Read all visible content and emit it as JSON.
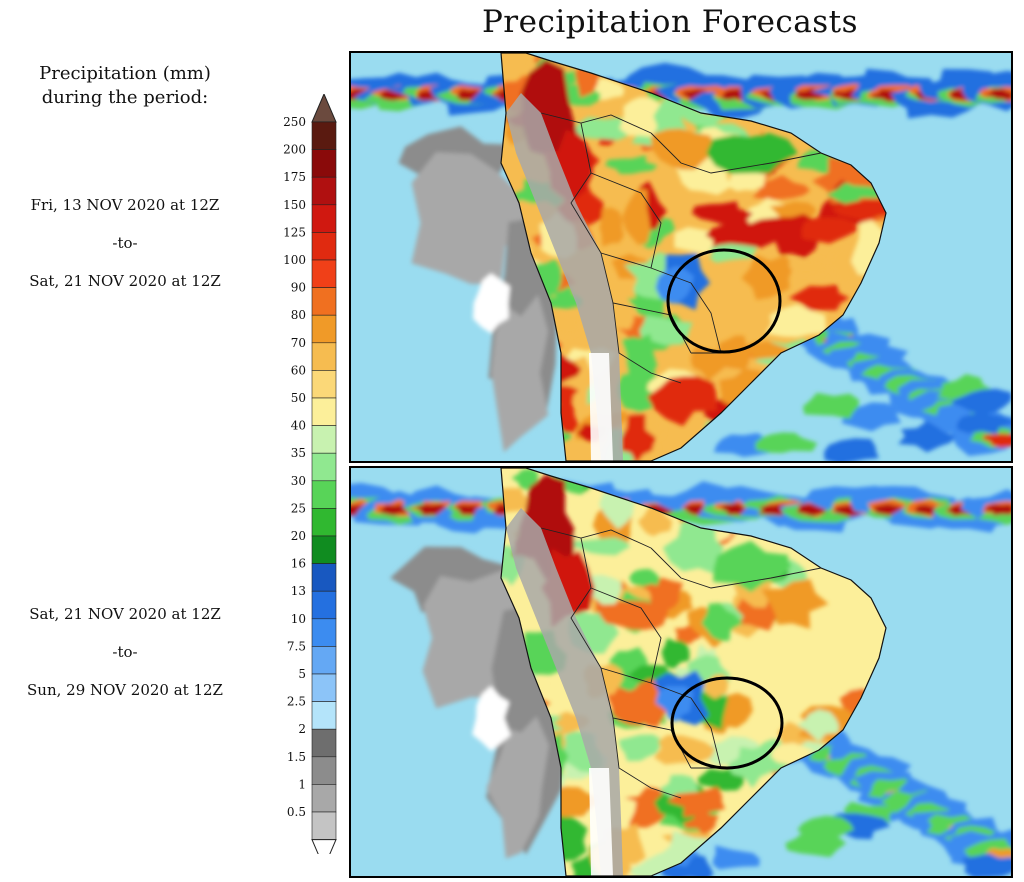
{
  "title": "Precipitation Forecasts",
  "legend_title": [
    "Precipitation (mm)",
    "during the period:"
  ],
  "periods": [
    {
      "start": "Fri, 13 NOV 2020 at 12Z",
      "sep": "-to-",
      "end": "Sat, 21 NOV 2020 at 12Z"
    },
    {
      "start": "Sat, 21 NOV 2020 at 12Z",
      "sep": "-to-",
      "end": "Sun, 29 NOV 2020 at 12Z"
    }
  ],
  "colorbar": {
    "labels": [
      "250",
      "200",
      "175",
      "150",
      "125",
      "100",
      "90",
      "80",
      "70",
      "60",
      "50",
      "40",
      "35",
      "30",
      "25",
      "20",
      "16",
      "13",
      "10",
      "7.5",
      "5",
      "2.5",
      "2",
      "1.5",
      "1",
      "0.5"
    ],
    "colors": [
      "#5a1a10",
      "#8a0a0a",
      "#b01010",
      "#d01810",
      "#e02a10",
      "#f04018",
      "#f07020",
      "#f09a28",
      "#f6bc50",
      "#fbd878",
      "#fcef9a",
      "#c8f2b0",
      "#90e890",
      "#58d458",
      "#30b830",
      "#108c20",
      "#1858c0",
      "#2470e0",
      "#3c8cf0",
      "#64a8f4",
      "#8cc4f8",
      "#b4e4fa",
      "#6e6e6e",
      "#8c8c8c",
      "#a8a8a8",
      "#c4c4c4"
    ],
    "top_cap": "#6b4a3e",
    "bottom_cap": "#ffffff"
  },
  "maps": [
    {
      "name": "forecast-week-1",
      "circle_label": ""
    },
    {
      "name": "forecast-week-2",
      "circle_label": ""
    }
  ]
}
